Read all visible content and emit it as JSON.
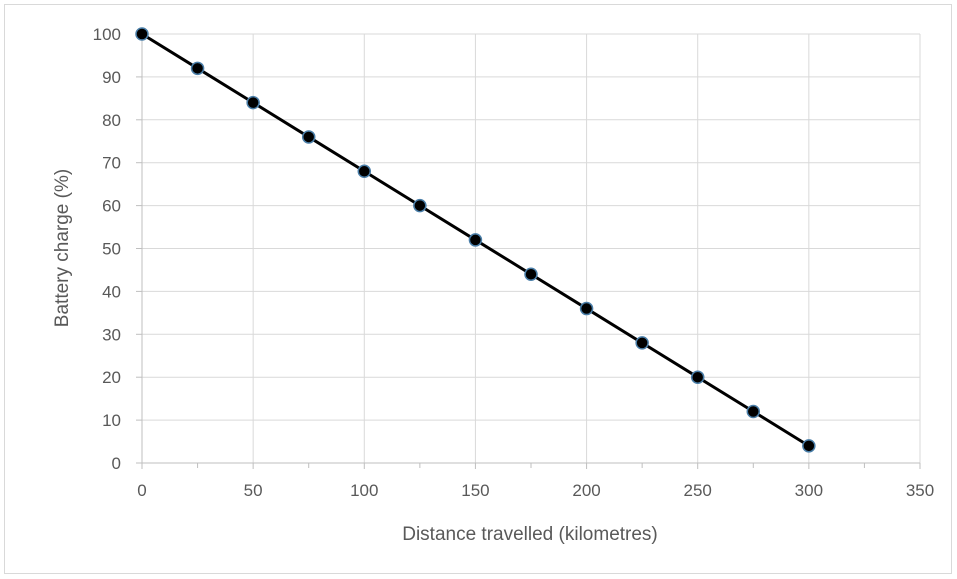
{
  "chart_data": {
    "type": "scatter",
    "title": "",
    "xlabel": "Distance travelled (kilometres)",
    "ylabel": "Battery charge (%)",
    "xlim": [
      0,
      350
    ],
    "ylim": [
      0,
      100
    ],
    "x_ticks": [
      0,
      50,
      100,
      150,
      200,
      250,
      300,
      350
    ],
    "y_ticks": [
      0,
      10,
      20,
      30,
      40,
      50,
      60,
      70,
      80,
      90,
      100
    ],
    "x_minor_step": 25,
    "grid": true,
    "legend": "none",
    "connect_points": true,
    "series": [
      {
        "x": [
          0,
          25,
          50,
          75,
          100,
          125,
          150,
          175,
          200,
          225,
          250,
          275,
          300
        ],
        "y": [
          100,
          92,
          84,
          76,
          68,
          60,
          52,
          44,
          36,
          28,
          20,
          12,
          4
        ]
      }
    ]
  },
  "colors": {
    "grid": "#d9d9d9",
    "axis": "#bfbfbf",
    "line": "#000000",
    "marker_fill": "#000000",
    "marker_edge": "#4a7ea8",
    "text": "#595959"
  }
}
